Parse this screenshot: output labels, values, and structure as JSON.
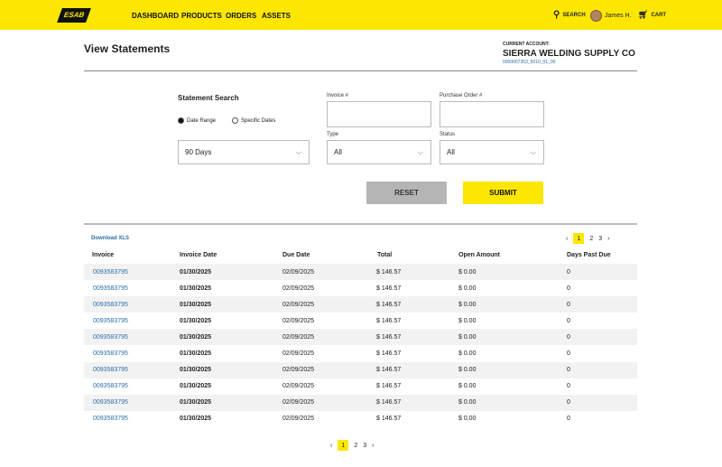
{
  "header": {
    "logo": "ESAB",
    "nav": [
      "DASHBOARD",
      "PRODUCTS",
      "ORDERS",
      "ASSETS"
    ],
    "search": "SEARCH",
    "user": "James H.",
    "cart": "CART"
  },
  "page": {
    "title": "View Statements",
    "account_label": "CURRENT ACCOUNT:",
    "account_name": "SIERRA WELDING SUPPLY CO",
    "account_code": "0000007353_5010_01_00"
  },
  "search": {
    "title": "Statement Search",
    "radio_date_range": "Date Range",
    "radio_specific": "Specific Dates",
    "selected_radio": "Date Range",
    "range_value": "90 Days",
    "invoice_label": "Invoice #",
    "invoice_value": "",
    "po_label": "Purchase Order #",
    "po_value": "",
    "type_label": "Type",
    "type_value": "All",
    "status_label": "Status",
    "status_value": "All",
    "reset": "RESET",
    "submit": "SUBMIT"
  },
  "table": {
    "download": "Download XLS",
    "pages": [
      "1",
      "2",
      "3"
    ],
    "current_page": "1",
    "prev": "‹",
    "next": "›",
    "columns": [
      "Invoice",
      "Invoice Date",
      "Due Date",
      "Total",
      "Open Amount",
      "Days Past Due"
    ],
    "rows": [
      [
        "0093583795",
        "01/30/2025",
        "02/09/2025",
        "$ 146.57",
        "$ 0.00",
        "0"
      ],
      [
        "0093583795",
        "01/30/2025",
        "02/09/2025",
        "$ 146.57",
        "$ 0.00",
        "0"
      ],
      [
        "0093583795",
        "01/30/2025",
        "02/09/2025",
        "$ 146.57",
        "$ 0.00",
        "0"
      ],
      [
        "0093583795",
        "01/30/2025",
        "02/09/2025",
        "$ 146.57",
        "$ 0.00",
        "0"
      ],
      [
        "0093583795",
        "01/30/2025",
        "02/09/2025",
        "$ 146.57",
        "$ 0.00",
        "0"
      ],
      [
        "0093583795",
        "01/30/2025",
        "02/09/2025",
        "$ 146.57",
        "$ 0.00",
        "0"
      ],
      [
        "0093583795",
        "01/30/2025",
        "02/09/2025",
        "$ 146.57",
        "$ 0.00",
        "0"
      ],
      [
        "0093583795",
        "01/30/2025",
        "02/09/2025",
        "$ 146.57",
        "$ 0.00",
        "0"
      ],
      [
        "0093583795",
        "01/30/2025",
        "02/09/2025",
        "$ 146.57",
        "$ 0.00",
        "0"
      ],
      [
        "0093583795",
        "01/30/2025",
        "02/09/2025",
        "$ 146.57",
        "$ 0.00",
        "0"
      ]
    ]
  },
  "colors": {
    "brand_yellow": "#fde700",
    "link": "#2a6ea8",
    "reset_grey": "#b5b5b5"
  }
}
